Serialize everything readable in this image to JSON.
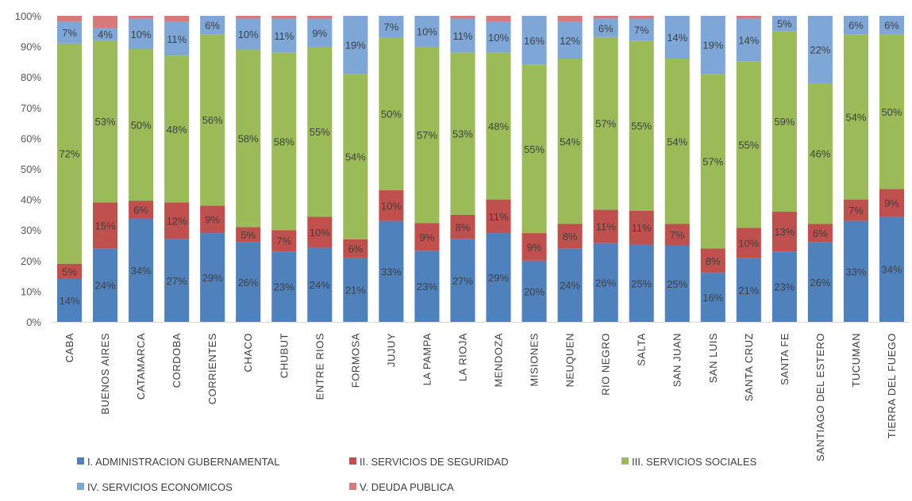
{
  "chart_data": {
    "type": "bar",
    "stacked": true,
    "normalized": true,
    "categories": [
      "CABA",
      "BUENOS AIRES",
      "CATAMARCA",
      "CORDOBA",
      "CORRIENTES",
      "CHACO",
      "CHUBUT",
      "ENTRE RIOS",
      "FORMOSA",
      "JUJUY",
      "LA PAMPA",
      "LA RIOJA",
      "MENDOZA",
      "MISIONES",
      "NEUQUEN",
      "RIO NEGRO",
      "SALTA",
      "SAN JUAN",
      "SAN LUIS",
      "SANTA CRUZ",
      "SANTA FE",
      "SANTIAGO DEL ESTERO",
      "TUCUMAN",
      "TIERRA DEL FUEGO"
    ],
    "series": [
      {
        "name": "I. ADMINISTRACION GUBERNAMENTAL",
        "color": "#4f81bd",
        "values": [
          14,
          24,
          34,
          27,
          29,
          26,
          23,
          24,
          21,
          33,
          23,
          27,
          29,
          20,
          24,
          26,
          25,
          25,
          16,
          21,
          23,
          26,
          33,
          34
        ],
        "labels": [
          "14%",
          "24%",
          "34%",
          "27%",
          "29%",
          "26%",
          "23%",
          "24%",
          "21%",
          "33%",
          "23%",
          "27%",
          "29%",
          "20%",
          "24%",
          "26%",
          "25%",
          "25%",
          "16%",
          "21%",
          "23%",
          "26%",
          "33%",
          "34%"
        ]
      },
      {
        "name": "II. SERVICIOS DE SEGURIDAD",
        "color": "#c0504d",
        "values": [
          5,
          15,
          6,
          12,
          9,
          5,
          7,
          10,
          6,
          10,
          9,
          8,
          11,
          9,
          8,
          11,
          11,
          7,
          8,
          10,
          13,
          6,
          7,
          9
        ],
        "labels": [
          "5%",
          "15%",
          "6%",
          "12%",
          "9%",
          "5%",
          "7%",
          "10%",
          "6%",
          "10%",
          "9%",
          "8%",
          "11%",
          "9%",
          "8%",
          "11%",
          "11%",
          "7%",
          "8%",
          "10%",
          "13%",
          "6%",
          "7%",
          "9%"
        ]
      },
      {
        "name": "III. SERVICIOS SOCIALES",
        "color": "#9bbb59",
        "values": [
          72,
          53,
          50,
          48,
          56,
          58,
          58,
          55,
          54,
          50,
          57,
          53,
          48,
          55,
          54,
          57,
          55,
          54,
          57,
          55,
          59,
          46,
          54,
          50
        ],
        "labels": [
          "72%",
          "53%",
          "50%",
          "48%",
          "56%",
          "58%",
          "58%",
          "55%",
          "54%",
          "50%",
          "57%",
          "53%",
          "48%",
          "55%",
          "54%",
          "57%",
          "55%",
          "54%",
          "57%",
          "55%",
          "59%",
          "46%",
          "54%",
          "50%"
        ]
      },
      {
        "name": "IV. SERVICIOS ECONOMICOS",
        "color": "#7ea7d8",
        "values": [
          7,
          4,
          10,
          11,
          6,
          10,
          11,
          9,
          19,
          7,
          10,
          11,
          10,
          16,
          12,
          6,
          7,
          14,
          19,
          14,
          5,
          22,
          6,
          6
        ],
        "labels": [
          "7%",
          "4%",
          "10%",
          "11%",
          "6%",
          "10%",
          "11%",
          "9%",
          "19%",
          "7%",
          "10%",
          "11%",
          "10%",
          "16%",
          "12%",
          "6%",
          "7%",
          "14%",
          "19%",
          "14%",
          "5%",
          "22%",
          "6%",
          "6%"
        ]
      },
      {
        "name": "V. DEUDA PUBLICA",
        "color": "#d77b7a",
        "values": [
          2,
          4,
          1,
          2,
          0,
          1,
          1,
          1,
          0,
          0,
          0,
          1,
          2,
          0,
          2,
          1,
          1,
          0,
          0,
          1,
          0,
          0,
          0,
          0
        ],
        "labels": [
          "",
          "",
          "",
          "",
          "",
          "",
          "",
          "",
          "",
          "",
          "",
          "",
          "",
          "",
          "",
          "",
          "",
          "",
          "",
          "",
          "",
          "",
          "",
          ""
        ]
      }
    ],
    "y_ticks": [
      "0%",
      "10%",
      "20%",
      "30%",
      "40%",
      "50%",
      "60%",
      "70%",
      "80%",
      "90%",
      "100%"
    ],
    "ylim": [
      0,
      100
    ],
    "legend_position": "bottom",
    "grid": false
  }
}
